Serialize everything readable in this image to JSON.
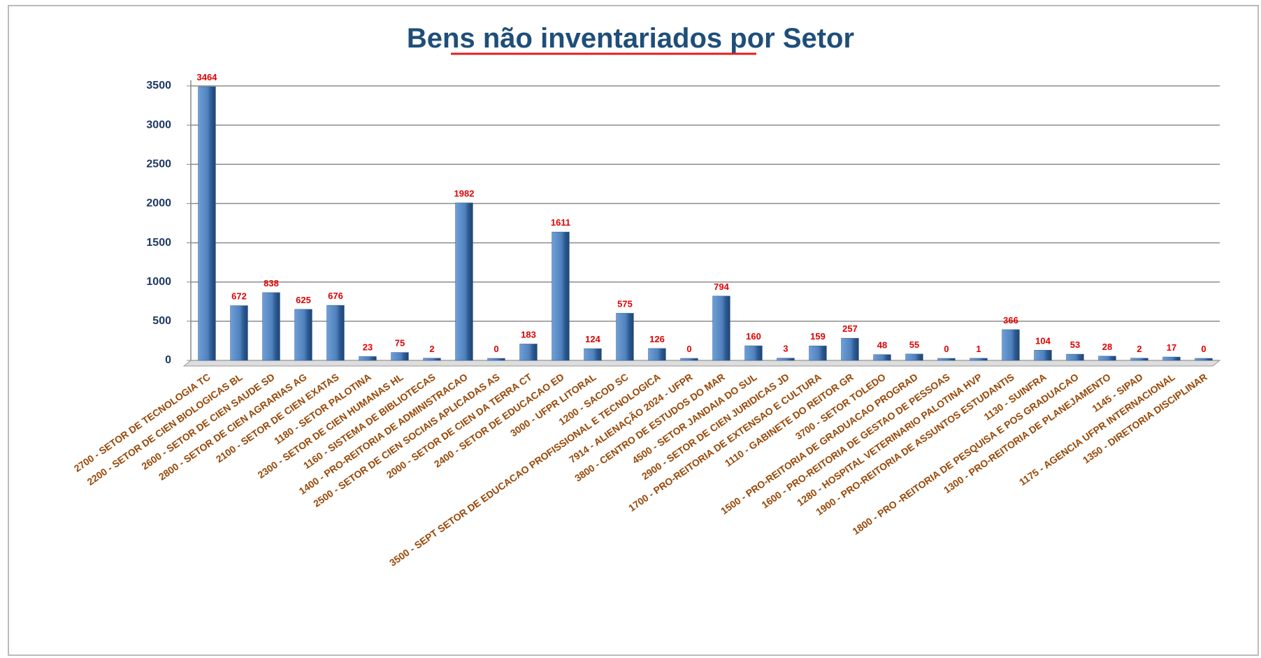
{
  "chart_data": {
    "type": "bar",
    "title": "Bens não inventariados por Setor",
    "categories": [
      "2700 - SETOR DE TECNOLOGIA TC",
      "2200 - SETOR DE CIEN BIOLOGICAS BL",
      "2600 - SETOR DE CIEN  SAUDE SD",
      "2800 - SETOR DE CIEN AGRARIAS AG",
      "2100 - SETOR DE CIEN EXATAS",
      "1180 - SETOR PALOTINA",
      "2300 - SETOR DE CIEN HUMANAS HL",
      "1160 - SISTEMA DE BIBLIOTECAS",
      "1400 - PRO-REITORIA DE ADMINISTRACAO",
      "2500 - SETOR DE CIEN SOCIAIS APLICADAS AS",
      "2000 - SETOR DE CIEN DA TERRA CT",
      "2400 - SETOR DE EDUCACAO ED",
      "3000 - UFPR LITORAL",
      "1200 - SACOD SC",
      "3500 - SEPT SETOR DE EDUCACAO PROFISSIONAL E TECNOLOGICA",
      "7914 - ALIENAÇÃO 2024 - UFPR",
      "3800 - CENTRO DE ESTUDOS DO MAR",
      "4500 - SETOR JANDAIA DO SUL",
      "2900 - SETOR DE CIEN JURIDICAS JD",
      "1700 - PRO-REITORIA DE EXTENSAO E CULTURA",
      "1110 - GABINETE DO REITOR GR",
      "3700 - SETOR TOLEDO",
      "1500 - PRO-REITORIA DE GRADUACAO PROGRAD",
      "1600 - PRO-REITORIA DE GESTAO DE PESSOAS",
      "1280 - HOSPITAL VETERINARIO PALOTINA HVP",
      "1900 - PRO-REITORIA DE ASSUNTOS ESTUDANTIS",
      "1130 - SUINFRA",
      "1800 - PRO -REITORIA DE PESQUISA E POS GRADUACAO",
      "1300 - PRO-REITORIA DE PLANEJAMENTO",
      "1145 - SIPAD",
      "1175 - AGENCIA UFPR INTERNACIONAL",
      "1350 - DIRETORIA DISCIPLINAR"
    ],
    "values": [
      3464,
      672,
      838,
      625,
      676,
      23,
      75,
      2,
      1982,
      0,
      183,
      1611,
      124,
      575,
      126,
      0,
      794,
      160,
      3,
      159,
      257,
      48,
      55,
      0,
      1,
      366,
      104,
      53,
      28,
      2,
      17,
      0
    ],
    "color": "#4f81bd",
    "ylim": [
      0,
      3500
    ],
    "yticks": [
      0,
      500,
      1000,
      1500,
      2000,
      2500,
      3000,
      3500
    ],
    "grid": true
  }
}
